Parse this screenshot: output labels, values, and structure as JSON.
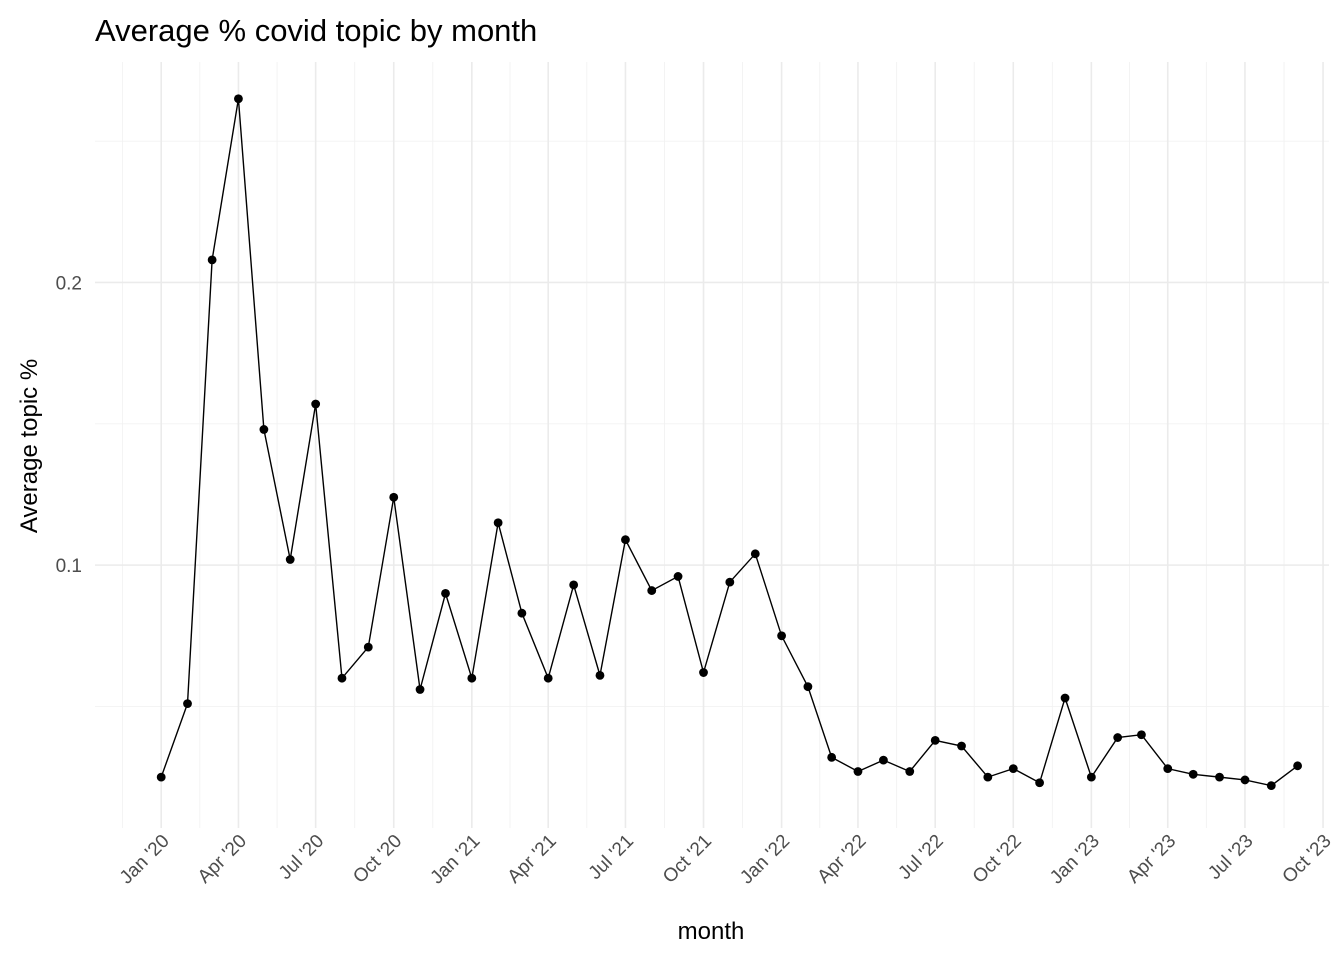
{
  "chart_data": {
    "type": "line",
    "title": "Average % covid topic by month",
    "xlabel": "month",
    "ylabel": "Average topic %",
    "x_tick_labels": [
      "Jan '20",
      "Apr '20",
      "Jul '20",
      "Oct '20",
      "Jan '21",
      "Apr '21",
      "Jul '21",
      "Oct '21",
      "Jan '22",
      "Apr '22",
      "Jul '22",
      "Oct '22",
      "Jan '23",
      "Apr '23",
      "Jul '23",
      "Oct '23"
    ],
    "y_tick_labels": [
      "0.1",
      "0.2"
    ],
    "y_ticks": [
      0.1,
      0.2
    ],
    "ylim": [
      0.007,
      0.278
    ],
    "xlim": [
      "2019-10-15",
      "2023-10-08"
    ],
    "grid": true,
    "series": [
      {
        "x": [
          "2020-01",
          "2020-02",
          "2020-03",
          "2020-04",
          "2020-05",
          "2020-06",
          "2020-07",
          "2020-08",
          "2020-09",
          "2020-10",
          "2020-11",
          "2020-12",
          "2021-01",
          "2021-02",
          "2021-03",
          "2021-04",
          "2021-05",
          "2021-06",
          "2021-07",
          "2021-08",
          "2021-09",
          "2021-10",
          "2021-11",
          "2021-12",
          "2022-01",
          "2022-02",
          "2022-03",
          "2022-04",
          "2022-05",
          "2022-06",
          "2022-07",
          "2022-08",
          "2022-09",
          "2022-10",
          "2022-11",
          "2022-12",
          "2023-01",
          "2023-02",
          "2023-03",
          "2023-04",
          "2023-05",
          "2023-06",
          "2023-07",
          "2023-08",
          "2023-09"
        ],
        "values": [
          0.025,
          0.051,
          0.208,
          0.265,
          0.148,
          0.102,
          0.157,
          0.06,
          0.071,
          0.124,
          0.056,
          0.09,
          0.06,
          0.115,
          0.083,
          0.06,
          0.093,
          0.061,
          0.109,
          0.091,
          0.096,
          0.062,
          0.094,
          0.104,
          0.075,
          0.057,
          0.032,
          0.027,
          0.031,
          0.027,
          0.038,
          0.036,
          0.025,
          0.028,
          0.023,
          0.053,
          0.025,
          0.039,
          0.04,
          0.028,
          0.026,
          0.025,
          0.024,
          0.022,
          0.029
        ]
      }
    ]
  }
}
